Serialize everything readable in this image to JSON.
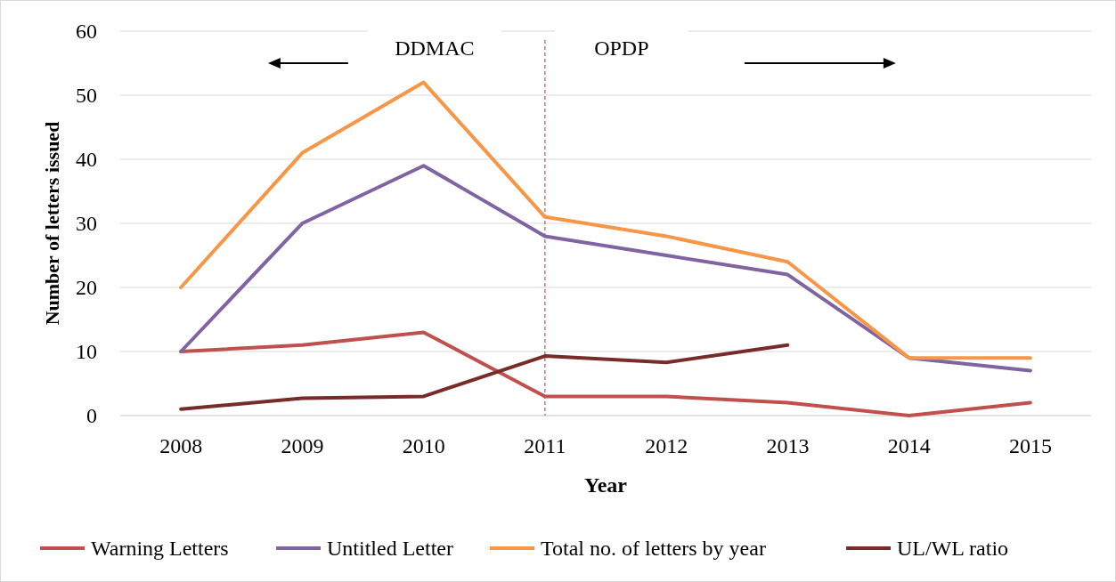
{
  "chart_data": {
    "type": "line",
    "xlabel": "Year",
    "ylabel": "Number of letters issued",
    "categories": [
      "2008",
      "2009",
      "2010",
      "2011",
      "2012",
      "2013",
      "2014",
      "2015"
    ],
    "series": [
      {
        "name": "Warning Letters",
        "color": "#c0504d",
        "values": [
          10,
          11,
          13,
          3,
          3,
          2,
          0,
          2
        ]
      },
      {
        "name": "Untitled Letter",
        "color": "#8064a2",
        "values": [
          10,
          30,
          39,
          28,
          25,
          22,
          9,
          7
        ]
      },
      {
        "name": "Total no. of letters by year",
        "color": "#f79646",
        "values": [
          20,
          41,
          52,
          31,
          28,
          24,
          9,
          9
        ]
      },
      {
        "name": "UL/WL ratio",
        "color": "#772c2a",
        "values": [
          1,
          2.7,
          3,
          9.3,
          8.3,
          11,
          null,
          null
        ]
      }
    ],
    "ylim": [
      0,
      60
    ],
    "yticks": [
      0,
      10,
      20,
      30,
      40,
      50,
      60
    ],
    "grid": "y",
    "legend": "bottom",
    "marker": "none",
    "line_style": "solid",
    "ref_lines": [
      {
        "axis": "x",
        "value": "2011",
        "color": "#c0504d",
        "line_style": "dashed"
      }
    ],
    "annotations": [
      "DDMAC",
      "OPDP"
    ]
  }
}
